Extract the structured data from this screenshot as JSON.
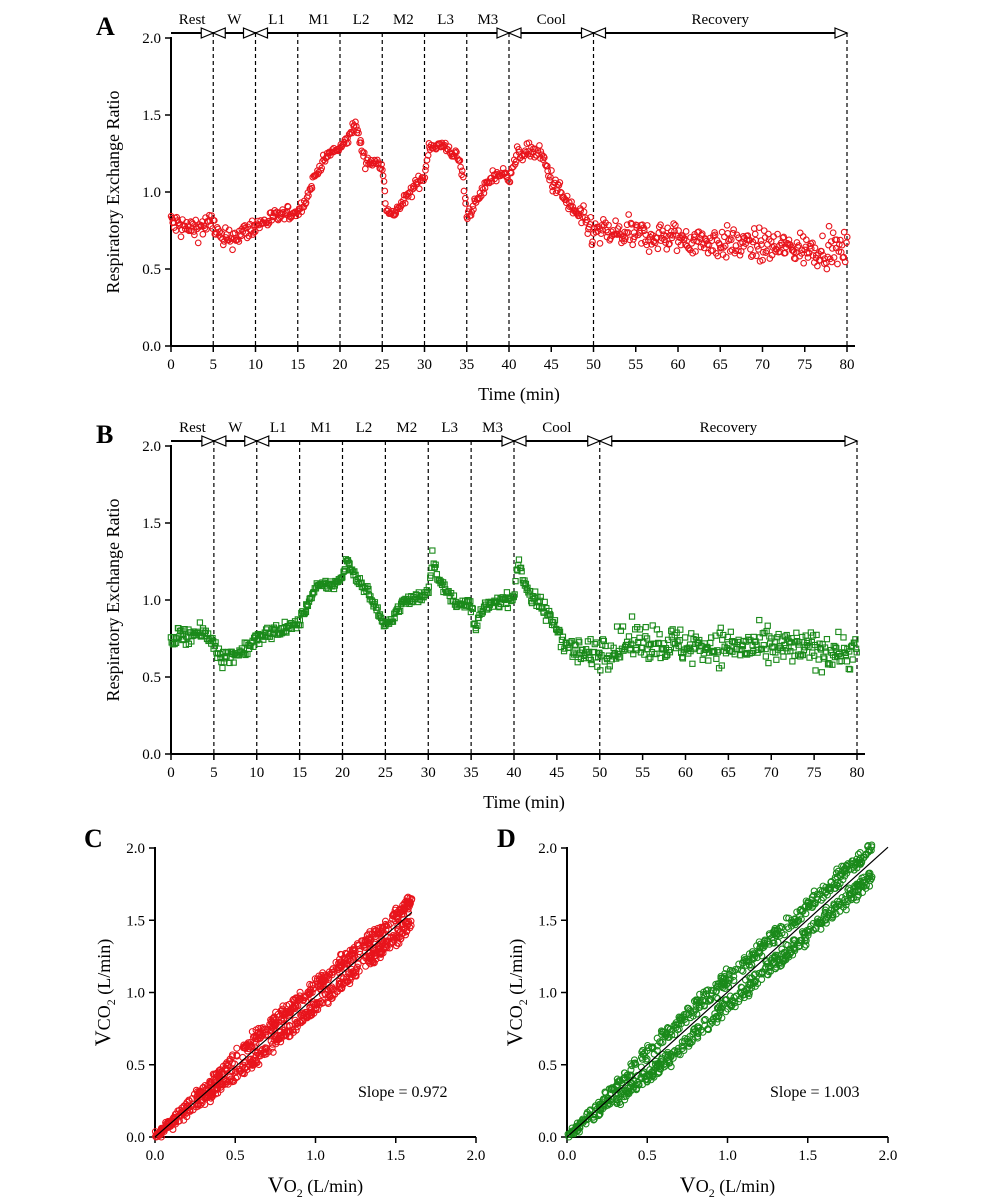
{
  "figure": {
    "panels": [
      "A",
      "B",
      "C",
      "D"
    ]
  },
  "colors": {
    "red": "#e8141c",
    "green": "#1a8a1a",
    "axis": "#000000",
    "fit_line": "#000000"
  },
  "chart_data": [
    {
      "panel": "A",
      "type": "scatter",
      "marker": "circle",
      "color": "#e8141c",
      "xlabel": "Time (min)",
      "ylabel": "Respiratory Exchange Ratio",
      "xlim": [
        0,
        80
      ],
      "ylim": [
        0,
        2.0
      ],
      "xticks": [
        "0",
        "5",
        "10",
        "15",
        "20",
        "25",
        "30",
        "35",
        "40",
        "45",
        "50",
        "55",
        "60",
        "65",
        "70",
        "75",
        "80"
      ],
      "yticks": [
        "0.0",
        "0.5",
        "1.0",
        "1.5",
        "2.0"
      ],
      "phases": [
        {
          "label": "Rest",
          "start": 0,
          "end": 5
        },
        {
          "label": "W",
          "start": 5,
          "end": 10
        },
        {
          "label": "L1",
          "start": 10,
          "end": 15
        },
        {
          "label": "M1",
          "start": 15,
          "end": 20
        },
        {
          "label": "L2",
          "start": 20,
          "end": 25
        },
        {
          "label": "M2",
          "start": 25,
          "end": 30
        },
        {
          "label": "L3",
          "start": 30,
          "end": 35
        },
        {
          "label": "M3",
          "start": 35,
          "end": 40
        },
        {
          "label": "Cool",
          "start": 40,
          "end": 50
        },
        {
          "label": "Recovery",
          "start": 50,
          "end": 80
        }
      ],
      "trend": [
        [
          0,
          0.8
        ],
        [
          2,
          0.76
        ],
        [
          4,
          0.78
        ],
        [
          5,
          0.8
        ],
        [
          6,
          0.68
        ],
        [
          8,
          0.72
        ],
        [
          10,
          0.78
        ],
        [
          12,
          0.83
        ],
        [
          14,
          0.86
        ],
        [
          15,
          0.87
        ],
        [
          16,
          0.95
        ],
        [
          17,
          1.1
        ],
        [
          18,
          1.2
        ],
        [
          19,
          1.26
        ],
        [
          20,
          1.28
        ],
        [
          21,
          1.35
        ],
        [
          21.8,
          1.45
        ],
        [
          22.5,
          1.3
        ],
        [
          23,
          1.2
        ],
        [
          24,
          1.19
        ],
        [
          25,
          1.18
        ],
        [
          25.5,
          0.9
        ],
        [
          26,
          0.84
        ],
        [
          27,
          0.9
        ],
        [
          28,
          0.97
        ],
        [
          29,
          1.05
        ],
        [
          30,
          1.1
        ],
        [
          30.5,
          1.3
        ],
        [
          31,
          1.3
        ],
        [
          32,
          1.3
        ],
        [
          33,
          1.27
        ],
        [
          34,
          1.22
        ],
        [
          34.5,
          1.12
        ],
        [
          35,
          0.85
        ],
        [
          36,
          0.92
        ],
        [
          37,
          1.02
        ],
        [
          38,
          1.1
        ],
        [
          39,
          1.12
        ],
        [
          40,
          1.1
        ],
        [
          41,
          1.24
        ],
        [
          42,
          1.26
        ],
        [
          43,
          1.27
        ],
        [
          44,
          1.22
        ],
        [
          45,
          1.08
        ],
        [
          46,
          1.0
        ],
        [
          47,
          0.92
        ],
        [
          48,
          0.86
        ],
        [
          49,
          0.79
        ],
        [
          50,
          0.74
        ],
        [
          55,
          0.72
        ],
        [
          60,
          0.7
        ],
        [
          65,
          0.67
        ],
        [
          70,
          0.65
        ],
        [
          75,
          0.63
        ],
        [
          80,
          0.62
        ]
      ],
      "noise": [
        [
          0,
          0.08
        ],
        [
          10,
          0.06
        ],
        [
          16,
          0.03
        ],
        [
          40,
          0.04
        ],
        [
          45,
          0.06
        ],
        [
          50,
          0.09
        ],
        [
          80,
          0.1
        ]
      ]
    },
    {
      "panel": "B",
      "type": "scatter",
      "marker": "square",
      "color": "#1a8a1a",
      "xlabel": "Time (min)",
      "ylabel": "Respiratory Exchange Ratio",
      "xlim": [
        0,
        80
      ],
      "ylim": [
        0,
        2.0
      ],
      "xticks": [
        "0",
        "5",
        "10",
        "15",
        "20",
        "25",
        "30",
        "35",
        "40",
        "45",
        "50",
        "55",
        "60",
        "65",
        "70",
        "75",
        "80"
      ],
      "yticks": [
        "0.0",
        "0.5",
        "1.0",
        "1.5",
        "2.0"
      ],
      "phases": [
        {
          "label": "Rest",
          "start": 0,
          "end": 5
        },
        {
          "label": "W",
          "start": 5,
          "end": 10
        },
        {
          "label": "L1",
          "start": 10,
          "end": 15
        },
        {
          "label": "M1",
          "start": 15,
          "end": 20
        },
        {
          "label": "L2",
          "start": 20,
          "end": 25
        },
        {
          "label": "M2",
          "start": 25,
          "end": 30
        },
        {
          "label": "L3",
          "start": 30,
          "end": 35
        },
        {
          "label": "M3",
          "start": 35,
          "end": 40
        },
        {
          "label": "Cool",
          "start": 40,
          "end": 50
        },
        {
          "label": "Recovery",
          "start": 50,
          "end": 80
        }
      ],
      "trend": [
        [
          0,
          0.75
        ],
        [
          2,
          0.78
        ],
        [
          4,
          0.78
        ],
        [
          5,
          0.72
        ],
        [
          6,
          0.62
        ],
        [
          8,
          0.66
        ],
        [
          10,
          0.74
        ],
        [
          12,
          0.8
        ],
        [
          14,
          0.82
        ],
        [
          15,
          0.86
        ],
        [
          16,
          0.98
        ],
        [
          17,
          1.08
        ],
        [
          18,
          1.1
        ],
        [
          19,
          1.1
        ],
        [
          20,
          1.14
        ],
        [
          20.5,
          1.28
        ],
        [
          21,
          1.2
        ],
        [
          22,
          1.12
        ],
        [
          23,
          1.05
        ],
        [
          24,
          0.94
        ],
        [
          25,
          0.82
        ],
        [
          26,
          0.9
        ],
        [
          27,
          0.98
        ],
        [
          28,
          1.0
        ],
        [
          29,
          1.02
        ],
        [
          30,
          1.06
        ],
        [
          30.5,
          1.28
        ],
        [
          31,
          1.18
        ],
        [
          32,
          1.05
        ],
        [
          33,
          1.0
        ],
        [
          34,
          0.97
        ],
        [
          35,
          0.97
        ],
        [
          35.5,
          0.8
        ],
        [
          36,
          0.9
        ],
        [
          37,
          0.97
        ],
        [
          38,
          0.99
        ],
        [
          39,
          1.0
        ],
        [
          40,
          1.02
        ],
        [
          40.6,
          1.27
        ],
        [
          41,
          1.15
        ],
        [
          42,
          1.02
        ],
        [
          43,
          0.97
        ],
        [
          44,
          0.9
        ],
        [
          45,
          0.82
        ],
        [
          46,
          0.72
        ],
        [
          47,
          0.68
        ],
        [
          48,
          0.65
        ],
        [
          49,
          0.65
        ],
        [
          50,
          0.67
        ],
        [
          55,
          0.74
        ],
        [
          60,
          0.7
        ],
        [
          65,
          0.7
        ],
        [
          70,
          0.69
        ],
        [
          75,
          0.68
        ],
        [
          80,
          0.66
        ]
      ],
      "noise": [
        [
          0,
          0.05
        ],
        [
          10,
          0.05
        ],
        [
          16,
          0.03
        ],
        [
          40,
          0.04
        ],
        [
          45,
          0.06
        ],
        [
          50,
          0.11
        ],
        [
          80,
          0.11
        ]
      ]
    },
    {
      "panel": "C",
      "type": "scatter",
      "marker": "circle",
      "color": "#e8141c",
      "xlabel_main": "V",
      "xlabel_sub": "O",
      "xlabel_subscript": "2",
      "xlabel_unit": " (L/min)",
      "ylabel_main": "V",
      "ylabel_sub": "CO",
      "ylabel_subscript": "2",
      "ylabel_unit": " (L/min)",
      "xlim": [
        0,
        2.0
      ],
      "ylim": [
        0,
        2.0
      ],
      "xticks": [
        "0.0",
        "0.5",
        "1.0",
        "1.5",
        "2.0"
      ],
      "yticks": [
        "0.0",
        "0.5",
        "1.0",
        "1.5",
        "2.0"
      ],
      "fit": {
        "slope": 0.972,
        "intercept": 0,
        "x_range": [
          0,
          1.6
        ]
      },
      "slope_label": "Slope = 0.972",
      "x_range": [
        0.0,
        1.6
      ],
      "spread": 0.09
    },
    {
      "panel": "D",
      "type": "scatter",
      "marker": "circle",
      "color": "#1a8a1a",
      "xlabel_main": "V",
      "xlabel_sub": "O",
      "xlabel_subscript": "2",
      "xlabel_unit": " (L/min)",
      "ylabel_main": "V",
      "ylabel_sub": "CO",
      "ylabel_subscript": "2",
      "ylabel_unit": " (L/min)",
      "xlim": [
        0,
        2.0
      ],
      "ylim": [
        0,
        2.0
      ],
      "xticks": [
        "0.0",
        "0.5",
        "1.0",
        "1.5",
        "2.0"
      ],
      "yticks": [
        "0.0",
        "0.5",
        "1.0",
        "1.5",
        "2.0"
      ],
      "fit": {
        "slope": 1.003,
        "intercept": 0,
        "x_range": [
          0,
          2.0
        ]
      },
      "slope_label": "Slope = 1.003",
      "x_range": [
        0.0,
        1.9
      ],
      "spread": 0.12
    }
  ]
}
